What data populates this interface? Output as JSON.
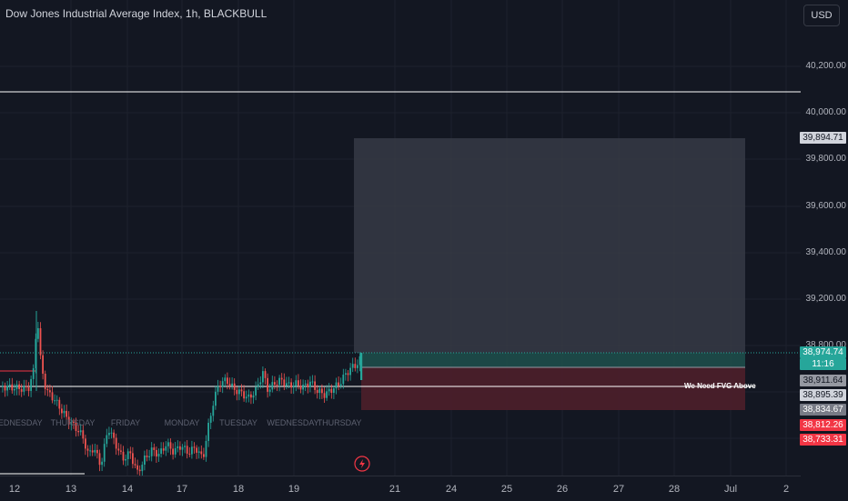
{
  "header": {
    "title": "Dow Jones Industrial Average Index, 1h, BLACKBULL",
    "currency": "USD"
  },
  "price_axis": {
    "labels": [
      "40,200.00",
      "40,000.00",
      "39,800.00",
      "39,600.00",
      "39,400.00",
      "39,200.00",
      "38,800.00"
    ]
  },
  "price_tags": {
    "target": {
      "value": "39,894.71",
      "color": "#d1d4dc"
    },
    "last": {
      "value": "38,974.74",
      "countdown": "11:16",
      "color": "#26a69a"
    },
    "gray1": {
      "value": "38,911.64"
    },
    "gray2": {
      "value": "38,895.39"
    },
    "gray3": {
      "value": "38,834.67"
    },
    "red1": {
      "value": "38,812.26",
      "color": "#f23645"
    },
    "red2": {
      "value": "38,733.31",
      "color": "#f23645"
    }
  },
  "time_axis": {
    "labels": [
      "12",
      "13",
      "14",
      "17",
      "18",
      "19",
      "21",
      "24",
      "25",
      "26",
      "27",
      "28",
      "Jul",
      "2"
    ]
  },
  "day_labels": [
    "WEDNESDAY",
    "THURSDAY",
    "FRIDAY",
    "MONDAY",
    "TUESDAY",
    "WEDNESDAY",
    "THURSDAY"
  ],
  "annotation": {
    "text": "We Need FVG Above"
  },
  "colors": {
    "up": "#26a69a",
    "down": "#ef5350",
    "background": "#131722"
  }
}
